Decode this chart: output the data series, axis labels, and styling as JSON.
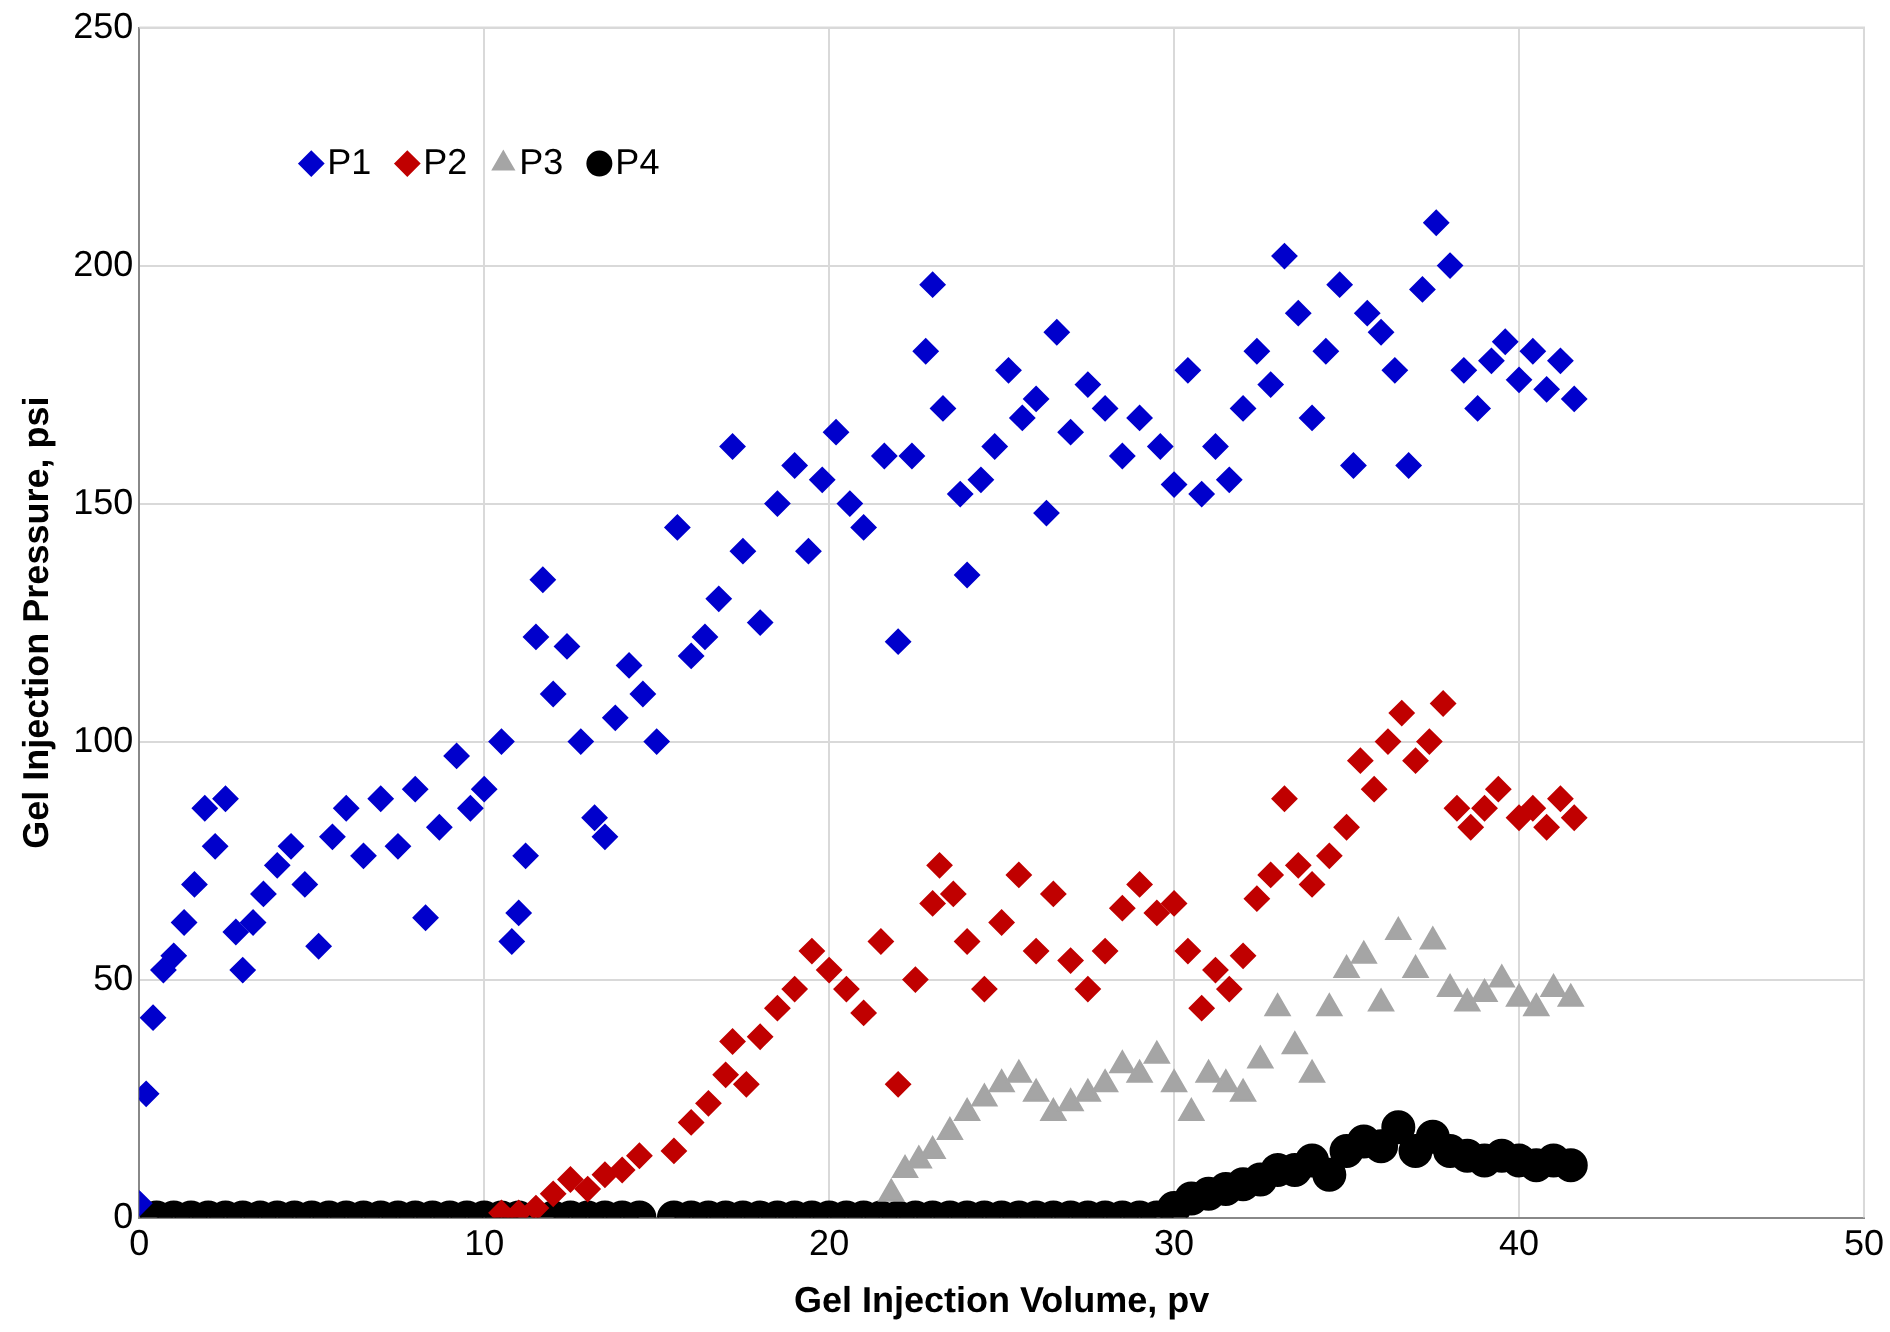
{
  "chart_data": {
    "type": "scatter",
    "xlabel": "Gel Injection Volume, pv",
    "ylabel": "Gel Injection Pressure, psi",
    "xlim": [
      0,
      50
    ],
    "xticks": [
      0,
      10,
      20,
      30,
      40,
      50
    ],
    "ylim": [
      0,
      250
    ],
    "yticks": [
      0,
      50,
      100,
      150,
      200,
      250
    ],
    "grid": true,
    "legend": "top left",
    "series": [
      {
        "name": "P1",
        "color": "#0000cc",
        "marker": "diamond",
        "x": [
          0,
          0.2,
          0.4,
          0.7,
          1,
          1.3,
          1.6,
          1.9,
          2.2,
          2.5,
          2.8,
          3,
          3.3,
          3.6,
          4,
          4.4,
          4.8,
          5.2,
          5.6,
          6,
          6.5,
          7,
          7.5,
          8,
          8.3,
          8.7,
          9.2,
          9.6,
          10,
          10.5,
          10.8,
          11,
          11.2,
          11.5,
          11.7,
          12,
          12.4,
          12.8,
          13.2,
          13.5,
          13.8,
          14.2,
          14.6,
          15,
          15.6,
          16,
          16.4,
          16.8,
          17.2,
          17.5,
          18,
          18.5,
          19,
          19.4,
          19.8,
          20.2,
          20.6,
          21,
          21.6,
          22,
          22.4,
          22.8,
          23,
          23.3,
          23.8,
          24,
          24.4,
          24.8,
          25.2,
          25.6,
          26,
          26.3,
          26.6,
          27,
          27.5,
          28,
          28.5,
          29,
          29.6,
          30,
          30.4,
          30.8,
          31.2,
          31.6,
          32,
          32.4,
          32.8,
          33.2,
          33.6,
          34,
          34.4,
          34.8,
          35.2,
          35.6,
          36,
          36.4,
          36.8,
          37.2,
          37.6,
          38,
          38.4,
          38.8,
          39.2,
          39.6,
          40,
          40.4,
          40.8,
          41.2,
          41.6
        ],
        "values": [
          3,
          26,
          42,
          52,
          55,
          62,
          70,
          86,
          78,
          88,
          60,
          52,
          62,
          68,
          74,
          78,
          70,
          57,
          80,
          86,
          76,
          88,
          78,
          90,
          63,
          82,
          97,
          86,
          90,
          100,
          58,
          64,
          76,
          122,
          134,
          110,
          120,
          100,
          84,
          80,
          105,
          116,
          110,
          100,
          145,
          118,
          122,
          130,
          162,
          140,
          125,
          150,
          158,
          140,
          155,
          165,
          150,
          145,
          160,
          121,
          160,
          182,
          196,
          170,
          152,
          135,
          155,
          162,
          178,
          168,
          172,
          148,
          186,
          165,
          175,
          170,
          160,
          168,
          162,
          154,
          178,
          152,
          162,
          155,
          170,
          182,
          175,
          202,
          190,
          168,
          182,
          196,
          158,
          190,
          186,
          178,
          158,
          195,
          209,
          200,
          178,
          170,
          180,
          184,
          176,
          182,
          174,
          180,
          172
        ]
      },
      {
        "name": "P2",
        "color": "#c00000",
        "marker": "diamond",
        "x": [
          10.5,
          11,
          11.5,
          12,
          12.5,
          13,
          13.5,
          14,
          14.5,
          15.5,
          16,
          16.5,
          17,
          17.2,
          17.6,
          18,
          18.5,
          19,
          19.5,
          20,
          20.5,
          21,
          21.5,
          22,
          22.5,
          23,
          23.2,
          23.6,
          24,
          24.5,
          25,
          25.5,
          26,
          26.5,
          27,
          27.5,
          28,
          28.5,
          29,
          29.5,
          30,
          30.4,
          30.8,
          31.2,
          31.6,
          32,
          32.4,
          32.8,
          33.2,
          33.6,
          34,
          34.5,
          35,
          35.4,
          35.8,
          36.2,
          36.6,
          37,
          37.4,
          37.8,
          38.2,
          38.6,
          39,
          39.4,
          40,
          40.4,
          40.8,
          41.2,
          41.6
        ],
        "values": [
          1,
          1,
          2,
          5,
          8,
          6,
          9,
          10,
          13,
          14,
          20,
          24,
          30,
          37,
          28,
          38,
          44,
          48,
          56,
          52,
          48,
          43,
          58,
          28,
          50,
          66,
          74,
          68,
          58,
          48,
          62,
          72,
          56,
          68,
          54,
          48,
          56,
          65,
          70,
          64,
          66,
          56,
          44,
          52,
          48,
          55,
          67,
          72,
          88,
          74,
          70,
          76,
          82,
          96,
          90,
          100,
          106,
          96,
          100,
          108,
          86,
          82,
          86,
          90,
          84,
          86,
          82,
          88,
          84
        ]
      },
      {
        "name": "P3",
        "color": "#a5a5a5",
        "marker": "triangle",
        "x": [
          21.8,
          22.2,
          22.6,
          23,
          23.5,
          24,
          24.5,
          25,
          25.5,
          26,
          26.5,
          27,
          27.5,
          28,
          28.5,
          29,
          29.5,
          30,
          30.5,
          31,
          31.5,
          32,
          32.5,
          33,
          33.5,
          34,
          34.5,
          35,
          35.5,
          36,
          36.5,
          37,
          37.5,
          38,
          38.5,
          39,
          39.5,
          40,
          40.5,
          41,
          41.5
        ],
        "values": [
          5,
          10,
          12,
          14,
          18,
          22,
          25,
          28,
          30,
          26,
          22,
          24,
          26,
          28,
          32,
          30,
          34,
          28,
          22,
          30,
          28,
          26,
          33,
          44,
          36,
          30,
          44,
          52,
          55,
          45,
          60,
          52,
          58,
          48,
          45,
          47,
          50,
          46,
          44,
          48,
          46
        ]
      },
      {
        "name": "P4",
        "color": "#000000",
        "marker": "circle",
        "x": [
          0.5,
          1,
          1.5,
          2,
          2.5,
          3,
          3.5,
          4,
          4.5,
          5,
          5.5,
          6,
          6.5,
          7,
          7.5,
          8,
          8.5,
          9,
          9.5,
          10,
          10.5,
          11,
          12,
          12.5,
          13,
          13.5,
          14,
          14.5,
          15.5,
          16,
          16.5,
          17,
          17.5,
          18,
          18.5,
          19,
          19.5,
          20,
          20.5,
          21,
          21.5,
          22,
          22.5,
          23,
          23.5,
          24,
          24.5,
          25,
          25.5,
          26,
          26.5,
          27,
          27.5,
          28,
          28.5,
          29,
          29.5,
          30,
          30.5,
          31,
          31.5,
          32,
          32.5,
          33,
          33.5,
          34,
          34.5,
          35,
          35.5,
          36,
          36.5,
          37,
          37.5,
          38,
          38.5,
          39,
          39.5,
          40,
          40.5,
          41,
          41.5
        ],
        "values": [
          0,
          0,
          0,
          0,
          0,
          0,
          0,
          0,
          0,
          0,
          0,
          0,
          0,
          0,
          0,
          0,
          0,
          0,
          0,
          0,
          0,
          0,
          0,
          0,
          0,
          0,
          0,
          0,
          0,
          0,
          0,
          0,
          0,
          0,
          0,
          0,
          0,
          0,
          0,
          0,
          0,
          0,
          0,
          0,
          0,
          0,
          0,
          0,
          0,
          0,
          0,
          0,
          0,
          0,
          0,
          0,
          0,
          2,
          4,
          5,
          6,
          7,
          8,
          10,
          10,
          12,
          9,
          14,
          16,
          15,
          19,
          14,
          17,
          14,
          13,
          12,
          13,
          12,
          11,
          12,
          11
        ]
      }
    ]
  }
}
